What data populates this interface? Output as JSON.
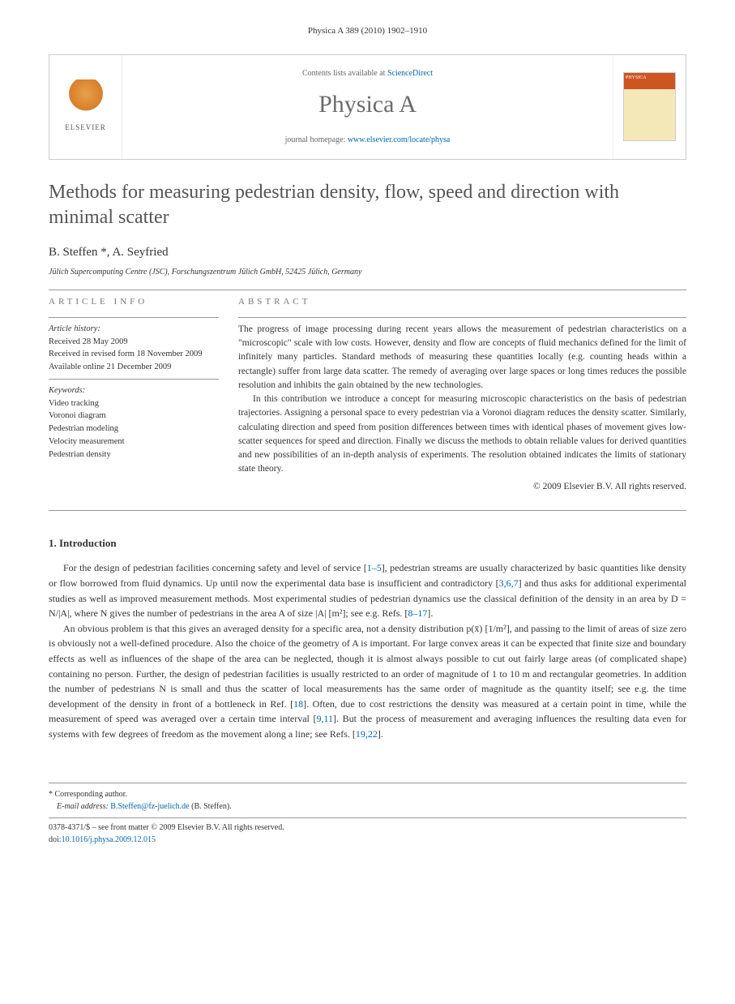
{
  "header": {
    "running_head": "Physica A 389 (2010) 1902–1910"
  },
  "masthead": {
    "contents_prefix": "Contents lists available at ",
    "contents_link": "ScienceDirect",
    "journal": "Physica A",
    "homepage_prefix": "journal homepage: ",
    "homepage_url": "www.elsevier.com/locate/physa",
    "publisher_name": "ELSEVIER",
    "cover_label": "PHYSICA"
  },
  "article": {
    "title": "Methods for measuring pedestrian density, flow, speed and direction with minimal scatter",
    "authors": "B. Steffen *, A. Seyfried",
    "affiliation": "Jülich Supercomputing Centre (JSC), Forschungszentrum Jülich GmbH, 52425 Jülich, Germany"
  },
  "info": {
    "label": "ARTICLE INFO",
    "history_heading": "Article history:",
    "received": "Received 28 May 2009",
    "revised": "Received in revised form 18 November 2009",
    "online": "Available online 21 December 2009",
    "keywords_heading": "Keywords:",
    "keywords": [
      "Video tracking",
      "Voronoi diagram",
      "Pedestrian modeling",
      "Velocity measurement",
      "Pedestrian density"
    ]
  },
  "abstract": {
    "label": "ABSTRACT",
    "p1": "The progress of image processing during recent years allows the measurement of pedestrian characteristics on a \"microscopic\" scale with low costs. However, density and flow are concepts of fluid mechanics defined for the limit of infinitely many particles. Standard methods of measuring these quantities locally (e.g. counting heads within a rectangle) suffer from large data scatter. The remedy of averaging over large spaces or long times reduces the possible resolution and inhibits the gain obtained by the new technologies.",
    "p2": "In this contribution we introduce a concept for measuring microscopic characteristics on the basis of pedestrian trajectories. Assigning a personal space to every pedestrian via a Voronoi diagram reduces the density scatter. Similarly, calculating direction and speed from position differences between times with identical phases of movement gives low-scatter sequences for speed and direction. Finally we discuss the methods to obtain reliable values for derived quantities and new possibilities of an in-depth analysis of experiments. The resolution obtained indicates the limits of stationary state theory.",
    "copyright": "© 2009 Elsevier B.V. All rights reserved."
  },
  "intro": {
    "heading": "1. Introduction",
    "p1_a": "For the design of pedestrian facilities concerning safety and level of service [",
    "p1_ref1": "1–5",
    "p1_b": "], pedestrian streams are usually characterized by basic quantities like density or flow borrowed from fluid dynamics. Up until now the experimental data base is insufficient and contradictory [",
    "p1_ref2": "3,6,7",
    "p1_c": "] and thus asks for additional experimental studies as well as improved measurement methods. Most experimental studies of pedestrian dynamics use the classical definition of the density in an area by D = N/|A|, where N gives the number of pedestrians in the area A of size |A| [m²]; see e.g. Refs. [",
    "p1_ref3": "8–17",
    "p1_d": "].",
    "p2_a": "An obvious problem is that this gives an averaged density for a specific area, not a density distribution p(x̄) [1/m²], and passing to the limit of areas of size zero is obviously not a well-defined procedure. Also the choice of the geometry of A is important. For large convex areas it can be expected that finite size and boundary effects as well as influences of the shape of the area can be neglected, though it is almost always possible to cut out fairly large areas (of complicated shape) containing no person. Further, the design of pedestrian facilities is usually restricted to an order of magnitude of 1 to 10 m and rectangular geometries. In addition the number of pedestrians N is small and thus the scatter of local measurements has the same order of magnitude as the quantity itself; see e.g. the time development of the density in front of a bottleneck in Ref. [",
    "p2_ref1": "18",
    "p2_b": "]. Often, due to cost restrictions the density was measured at a certain point in time, while the measurement of speed was averaged over a certain time interval [",
    "p2_ref2": "9,11",
    "p2_c": "]. But the process of measurement and averaging influences the resulting data even for systems with few degrees of freedom as the movement along a line; see Refs. [",
    "p2_ref3": "19,22",
    "p2_d": "]."
  },
  "footer": {
    "corr": "* Corresponding author.",
    "email_label": "E-mail address: ",
    "email": "B.Steffen@fz-juelich.de",
    "email_suffix": " (B. Steffen).",
    "issn": "0378-4371/$ – see front matter © 2009 Elsevier B.V. All rights reserved.",
    "doi_label": "doi:",
    "doi": "10.1016/j.physa.2009.12.015"
  },
  "colors": {
    "link": "#0066aa",
    "text": "#333333",
    "muted": "#6b6b6b",
    "border": "#cccccc"
  }
}
